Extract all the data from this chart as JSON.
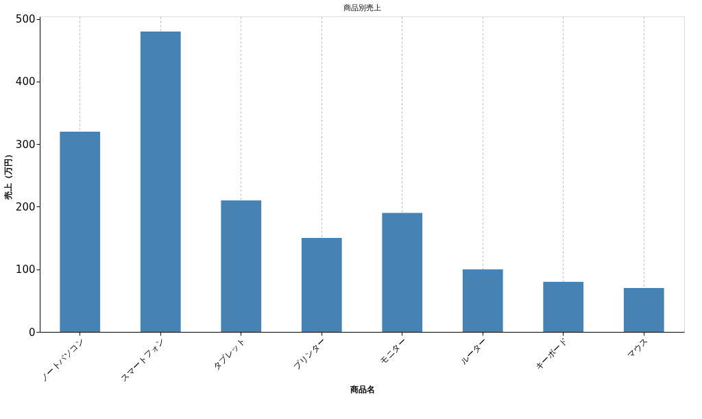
{
  "chart_data": {
    "type": "bar",
    "title": "商品別売上",
    "xlabel": "商品名",
    "ylabel": "売上（万円）",
    "categories": [
      "ノートパソコン",
      "スマートフォン",
      "タブレット",
      "プリンター",
      "モニター",
      "ルーター",
      "キーボード",
      "マウス"
    ],
    "values": [
      320,
      480,
      210,
      150,
      190,
      100,
      80,
      70
    ],
    "color": "#4682b4",
    "ylim": [
      0,
      504
    ],
    "yticks": [
      0,
      100,
      200,
      300,
      400,
      500
    ],
    "grid": "x"
  }
}
